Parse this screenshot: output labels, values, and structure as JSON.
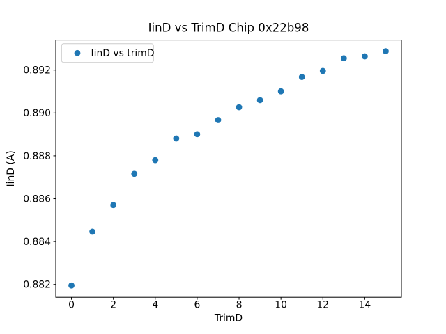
{
  "chart_data": {
    "type": "scatter",
    "title": "IinD vs TrimD Chip 0x22b98",
    "xlabel": "TrimD",
    "ylabel": "IinD (A)",
    "legend_label": "IinD vs trimD",
    "legend_position": "upper left",
    "marker_color": "#1f77b4",
    "grid": false,
    "x": [
      0,
      1,
      2,
      3,
      4,
      5,
      6,
      7,
      8,
      9,
      10,
      11,
      12,
      13,
      14,
      15
    ],
    "series": [
      {
        "name": "IinD vs trimD",
        "values": [
          0.88195,
          0.88446,
          0.8857,
          0.88716,
          0.8878,
          0.88881,
          0.88901,
          0.88967,
          0.89027,
          0.8906,
          0.89101,
          0.89168,
          0.89196,
          0.89255,
          0.89264,
          0.89288
        ]
      }
    ],
    "xlim": [
      -0.75,
      15.75
    ],
    "ylim": [
      0.8814,
      0.8934
    ],
    "x_ticks": [
      0,
      2,
      4,
      6,
      8,
      10,
      12,
      14
    ],
    "y_ticks": [
      0.882,
      0.884,
      0.886,
      0.888,
      0.89,
      0.892
    ],
    "y_tick_labels": [
      "0.882",
      "0.884",
      "0.886",
      "0.888",
      "0.890",
      "0.892"
    ]
  }
}
